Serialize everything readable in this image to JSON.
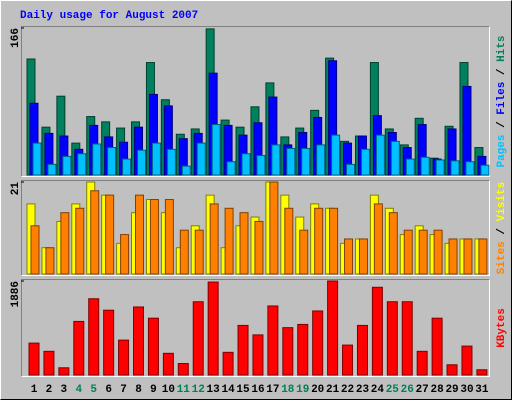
{
  "chart_data": [
    {
      "type": "bar",
      "title": "Daily usage for August 2007",
      "ylim": [
        0,
        166
      ],
      "yticks": [
        166
      ],
      "legend_separator": " / ",
      "series": [
        {
          "name": "Pages",
          "color": "#00c0ff",
          "values": [
            36,
            12,
            21,
            24,
            35,
            31,
            18,
            28,
            36,
            29,
            10,
            36,
            57,
            15,
            24,
            22,
            34,
            30,
            30,
            34,
            45,
            12,
            29,
            45,
            38,
            18,
            20,
            17,
            16,
            15,
            11
          ]
        },
        {
          "name": "Files",
          "color": "#0000ff",
          "values": [
            81,
            47,
            44,
            29,
            56,
            43,
            37,
            54,
            91,
            78,
            41,
            47,
            115,
            56,
            45,
            59,
            88,
            34,
            48,
            65,
            129,
            36,
            44,
            67,
            48,
            31,
            57,
            18,
            52,
            100,
            21
          ]
        },
        {
          "name": "Hits",
          "color": "#00805c",
          "values": [
            131,
            54,
            89,
            36,
            66,
            60,
            53,
            60,
            127,
            85,
            46,
            52,
            165,
            62,
            54,
            77,
            104,
            43,
            53,
            73,
            132,
            38,
            44,
            127,
            52,
            34,
            64,
            19,
            55,
            127,
            31
          ]
        }
      ]
    },
    {
      "type": "bar",
      "ylim": [
        0,
        21
      ],
      "yticks": [
        21
      ],
      "legend_separator": " / ",
      "series": [
        {
          "name": "Sites",
          "color": "#ff8000",
          "values": [
            11,
            6,
            14,
            15,
            19,
            18,
            9,
            18,
            17,
            17,
            10,
            10,
            16,
            15,
            14,
            12,
            21,
            15,
            10,
            15,
            15,
            8,
            8,
            16,
            14,
            10,
            10,
            10,
            8,
            8,
            8
          ]
        },
        {
          "name": "Visits",
          "color": "#ffff00",
          "values": [
            16,
            6,
            12,
            16,
            21,
            18,
            7,
            14,
            17,
            14,
            6,
            11,
            18,
            6,
            11,
            13,
            21,
            18,
            13,
            16,
            15,
            7,
            8,
            18,
            15,
            9,
            11,
            9,
            7,
            8,
            8
          ]
        }
      ]
    },
    {
      "type": "bar",
      "ylim": [
        0,
        1886
      ],
      "yticks": [
        1886
      ],
      "categories": [
        "1",
        "2",
        "3",
        "4",
        "5",
        "6",
        "7",
        "8",
        "9",
        "10",
        "11",
        "12",
        "13",
        "14",
        "15",
        "16",
        "17",
        "18",
        "19",
        "20",
        "21",
        "22",
        "23",
        "24",
        "25",
        "26",
        "27",
        "28",
        "29",
        "30",
        "31"
      ],
      "category_colors": [
        "#000000",
        "#000000",
        "#000000",
        "#00805c",
        "#00805c",
        "#000000",
        "#000000",
        "#000000",
        "#000000",
        "#000000",
        "#00805c",
        "#00805c",
        "#000000",
        "#000000",
        "#000000",
        "#000000",
        "#000000",
        "#00805c",
        "#00805c",
        "#000000",
        "#000000",
        "#000000",
        "#000000",
        "#000000",
        "#00805c",
        "#00805c",
        "#000000",
        "#000000",
        "#000000",
        "#000000",
        "#000000"
      ],
      "series": [
        {
          "name": "KBytes",
          "color": "#ff0000",
          "values": [
            640,
            475,
            145,
            1075,
            1530,
            1300,
            700,
            1365,
            1140,
            435,
            230,
            1470,
            1865,
            455,
            995,
            805,
            1385,
            950,
            1015,
            1285,
            1886,
            600,
            995,
            1760,
            1470,
            1470,
            475,
            1140,
            205,
            580,
            105
          ]
        }
      ]
    }
  ]
}
